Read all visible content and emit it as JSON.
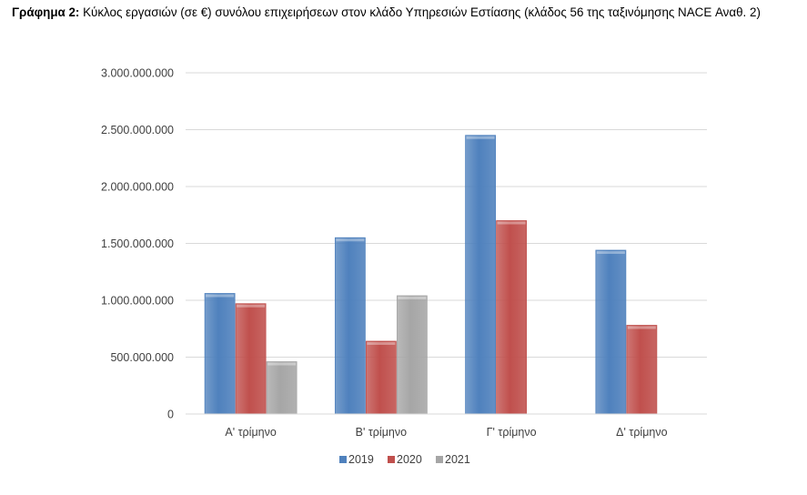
{
  "caption": {
    "label": "Γράφημα 2:",
    "text": "Κύκλος εργασιών (σε €) συνόλου επιχειρήσεων στον κλάδο Υπηρεσιών Εστίασης (κλάδος 56 της ταξινόμησης NACE Αναθ. 2)"
  },
  "chart_data": {
    "type": "bar",
    "title": "",
    "xlabel": "",
    "ylabel": "",
    "categories": [
      "Α' τρίμηνο",
      "Β' τρίμηνο",
      "Γ' τρίμηνο",
      "Δ' τρίμηνο"
    ],
    "series": [
      {
        "name": "2019",
        "color": "#4f81bd",
        "values": [
          1060000000,
          1550000000,
          2450000000,
          1440000000
        ]
      },
      {
        "name": "2020",
        "color": "#c0504d",
        "values": [
          970000000,
          640000000,
          1700000000,
          780000000
        ]
      },
      {
        "name": "2021",
        "color": "#a6a6a6",
        "values": [
          460000000,
          1040000000,
          null,
          null
        ]
      }
    ],
    "ylim": [
      0,
      3000000000
    ],
    "yticks": [
      {
        "value": 0,
        "label": "0"
      },
      {
        "value": 500000000,
        "label": "500.000.000"
      },
      {
        "value": 1000000000,
        "label": "1.000.000.000"
      },
      {
        "value": 1500000000,
        "label": "1.500.000.000"
      },
      {
        "value": 2000000000,
        "label": "2.000.000.000"
      },
      {
        "value": 2500000000,
        "label": "2.500.000.000"
      },
      {
        "value": 3000000000,
        "label": "3.000.000.000"
      }
    ],
    "grid": true,
    "legend": "bottom"
  }
}
